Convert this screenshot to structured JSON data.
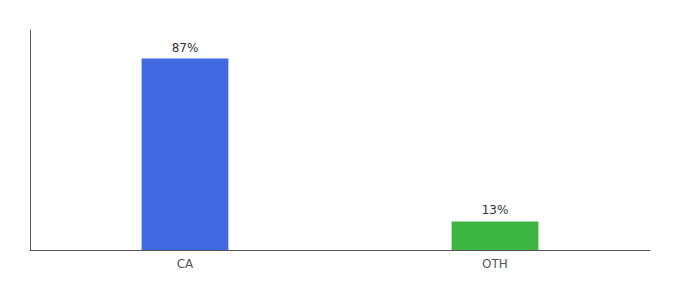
{
  "chart_data": {
    "type": "bar",
    "categories": [
      "CA",
      "OTH"
    ],
    "values": [
      87,
      13
    ],
    "value_labels": [
      "87%",
      "13%"
    ],
    "colors": [
      "#4169e1",
      "#3cb543"
    ],
    "ylim": [
      0,
      100
    ],
    "grid": false,
    "data_labels": true,
    "tick_labels": "x"
  }
}
